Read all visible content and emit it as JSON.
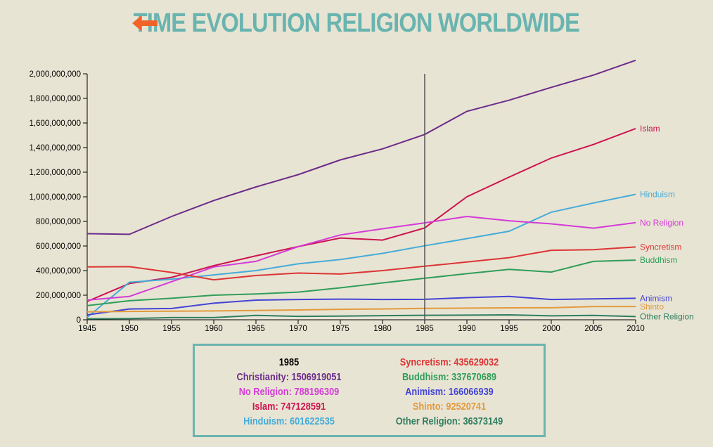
{
  "title": "TIME EVOLUTION RELIGION WORLDWIDE",
  "back_icon": "left-arrow-icon",
  "colors": {
    "background": "#e8e4d3",
    "title": "#6ab4b0",
    "arrow": "#f0642a",
    "box_border": "#6ab4b0",
    "marker": "#555555"
  },
  "chart_data": {
    "type": "line",
    "title": "TIME EVOLUTION RELIGION WORLDWIDE",
    "x": [
      1945,
      1950,
      1955,
      1960,
      1965,
      1970,
      1975,
      1980,
      1985,
      1990,
      1995,
      2000,
      2005,
      2010
    ],
    "x_ticks": [
      "1945",
      "1950",
      "1955",
      "1960",
      "1965",
      "1970",
      "1975",
      "1980",
      "1985",
      "1990",
      "1995",
      "2000",
      "2005",
      "2010"
    ],
    "y_ticks": [
      "0",
      "200,000,000",
      "400,000,000",
      "600,000,000",
      "800,000,000",
      "1,000,000,000",
      "1,200,000,000",
      "1,400,000,000",
      "1,600,000,000",
      "1,800,000,000",
      "2,000,000,000"
    ],
    "ylim": [
      0,
      2000000000
    ],
    "xlim": [
      1945,
      2010
    ],
    "grid": false,
    "legend": "inline labels at right end of lines",
    "selected_year": 1985,
    "series": [
      {
        "name": "Christianity",
        "color": "#6b2c8a",
        "show_label": false,
        "values": [
          700000000,
          695000000,
          840000000,
          970000000,
          1080000000,
          1180000000,
          1300000000,
          1390000000,
          1506919051,
          1695000000,
          1785000000,
          1890000000,
          1990000000,
          2110000000
        ]
      },
      {
        "name": "Islam",
        "color": "#cc1550",
        "show_label": true,
        "values": [
          150000000,
          295000000,
          345000000,
          440000000,
          520000000,
          595000000,
          665000000,
          648000000,
          747128591,
          1000000000,
          1160000000,
          1315000000,
          1425000000,
          1555000000
        ]
      },
      {
        "name": "Hinduism",
        "color": "#45abd8",
        "show_label": true,
        "values": [
          20000000,
          305000000,
          330000000,
          365000000,
          400000000,
          455000000,
          490000000,
          540000000,
          601622535,
          660000000,
          720000000,
          875000000,
          950000000,
          1020000000
        ]
      },
      {
        "name": "No Religion",
        "color": "#d43ad8",
        "show_label": true,
        "values": [
          160000000,
          190000000,
          310000000,
          430000000,
          475000000,
          595000000,
          690000000,
          740000000,
          788196309,
          840000000,
          805000000,
          780000000,
          745000000,
          790000000
        ]
      },
      {
        "name": "Syncretism",
        "color": "#dc3535",
        "show_label": true,
        "values": [
          430000000,
          432000000,
          385000000,
          325000000,
          360000000,
          380000000,
          372000000,
          400000000,
          435629032,
          470000000,
          505000000,
          565000000,
          570000000,
          592000000
        ]
      },
      {
        "name": "Buddhism",
        "color": "#2f9e5a",
        "show_label": true,
        "values": [
          115000000,
          155000000,
          175000000,
          200000000,
          210000000,
          225000000,
          260000000,
          300000000,
          337670689,
          375000000,
          410000000,
          388000000,
          475000000,
          485000000
        ]
      },
      {
        "name": "Animism",
        "color": "#4444d6",
        "show_label": true,
        "values": [
          40000000,
          88000000,
          92000000,
          135000000,
          160000000,
          165000000,
          168000000,
          165000000,
          166066939,
          180000000,
          190000000,
          165000000,
          170000000,
          175000000
        ]
      },
      {
        "name": "Shinto",
        "color": "#e39a3d",
        "show_label": true,
        "values": [
          65000000,
          68000000,
          70000000,
          72000000,
          76000000,
          80000000,
          85000000,
          88000000,
          92520741,
          95000000,
          97000000,
          98000000,
          108000000,
          108000000
        ]
      },
      {
        "name": "Other Religion",
        "color": "#2f7e60",
        "show_label": true,
        "values": [
          8000000,
          10000000,
          18000000,
          18000000,
          36000000,
          28000000,
          30000000,
          34000000,
          36373149,
          38000000,
          40000000,
          32000000,
          36000000,
          26000000
        ]
      }
    ]
  },
  "tooltip": {
    "year": "1985",
    "left_lines": [
      {
        "text": "Christianity: 1506919051",
        "color": "#6b2c8a"
      },
      {
        "text": "No Religion: 788196309",
        "color": "#d43ad8"
      },
      {
        "text": "Islam: 747128591",
        "color": "#cc1550"
      },
      {
        "text": "Hinduism: 601622535",
        "color": "#45abd8"
      }
    ],
    "right_lines": [
      {
        "text": "Syncretism: 435629032",
        "color": "#dc3535"
      },
      {
        "text": "Buddhism: 337670689",
        "color": "#2f9e5a"
      },
      {
        "text": "Animism: 166066939",
        "color": "#4444d6"
      },
      {
        "text": "Shinto: 92520741",
        "color": "#e39a3d"
      },
      {
        "text": "Other Religion: 36373149",
        "color": "#2f7e60"
      }
    ]
  }
}
